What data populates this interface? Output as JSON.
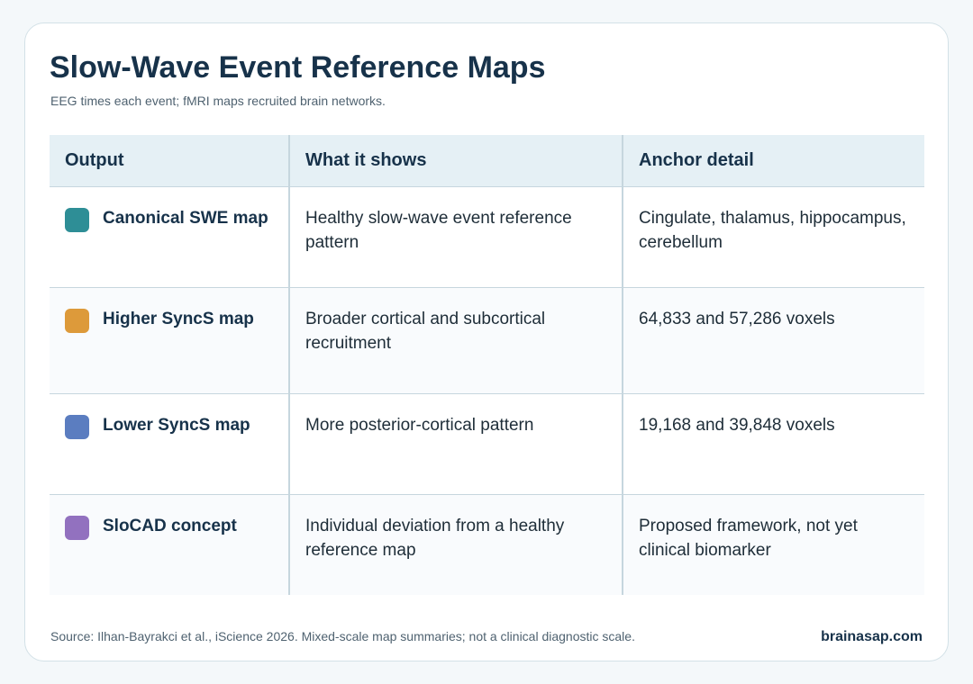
{
  "title": "Slow-Wave Event Reference Maps",
  "subtitle": "EEG times each event; fMRI maps recruited brain networks.",
  "table": {
    "headers": [
      "Output",
      "What it shows",
      "Anchor detail"
    ],
    "rows": [
      {
        "output": "Canonical SWE map",
        "color": "#2e8e96",
        "shows": "Healthy slow-wave event reference pattern",
        "anchor": "Cingulate, thalamus, hippocampus, cerebellum"
      },
      {
        "output": "Higher SyncS map",
        "color": "#dd9a3a",
        "shows": "Broader cortical and subcortical recruitment",
        "anchor": "64,833 and 57,286 voxels"
      },
      {
        "output": "Lower SyncS map",
        "color": "#5b7dc0",
        "shows": "More posterior-cortical pattern",
        "anchor": "19,168 and 39,848 voxels"
      },
      {
        "output": "SloCAD concept",
        "color": "#9271bf",
        "shows": "Individual deviation from a healthy reference map",
        "anchor": "Proposed framework, not yet clinical biomarker"
      }
    ]
  },
  "footer": {
    "source": "Source: Ilhan-Bayrakci et al., iScience 2026. Mixed-scale map summaries; not a clinical diagnostic scale.",
    "brand": "brainasap.com"
  }
}
